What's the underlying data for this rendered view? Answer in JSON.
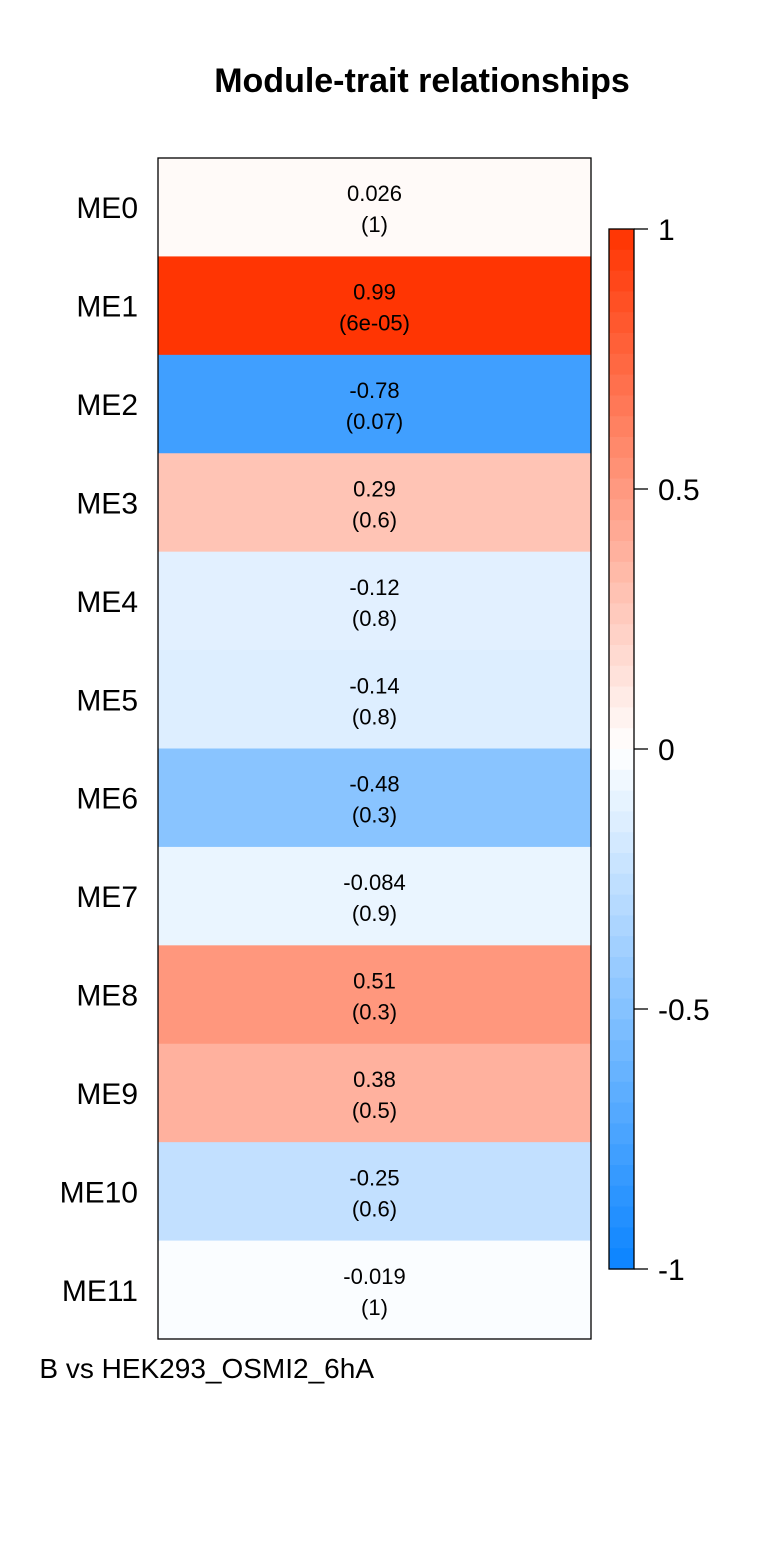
{
  "chart_data": {
    "type": "heatmap",
    "title": "Module-trait relationships",
    "xlabel": "",
    "ylabel": "",
    "x_tick_label": "B vs HEK293_OSMI2_6hA",
    "rows": [
      {
        "label": "ME0",
        "value": 0.026,
        "text": "0.026",
        "pvalue": "(1)"
      },
      {
        "label": "ME1",
        "value": 0.99,
        "text": "0.99",
        "pvalue": "(6e-05)"
      },
      {
        "label": "ME2",
        "value": -0.78,
        "text": "-0.78",
        "pvalue": "(0.07)"
      },
      {
        "label": "ME3",
        "value": 0.29,
        "text": "0.29",
        "pvalue": "(0.6)"
      },
      {
        "label": "ME4",
        "value": -0.12,
        "text": "-0.12",
        "pvalue": "(0.8)"
      },
      {
        "label": "ME5",
        "value": -0.14,
        "text": "-0.14",
        "pvalue": "(0.8)"
      },
      {
        "label": "ME6",
        "value": -0.48,
        "text": "-0.48",
        "pvalue": "(0.3)"
      },
      {
        "label": "ME7",
        "value": -0.084,
        "text": "-0.084",
        "pvalue": "(0.9)"
      },
      {
        "label": "ME8",
        "value": 0.51,
        "text": "0.51",
        "pvalue": "(0.3)"
      },
      {
        "label": "ME9",
        "value": 0.38,
        "text": "0.38",
        "pvalue": "(0.5)"
      },
      {
        "label": "ME10",
        "value": -0.25,
        "text": "-0.25",
        "pvalue": "(0.6)"
      },
      {
        "label": "ME11",
        "value": -0.019,
        "text": "-0.019",
        "pvalue": "(1)"
      }
    ],
    "colorbar": {
      "range": [
        -1,
        1
      ],
      "ticks": [
        {
          "value": 1,
          "label": "1"
        },
        {
          "value": 0.5,
          "label": "0.5"
        },
        {
          "value": 0,
          "label": "0"
        },
        {
          "value": -0.5,
          "label": "-0.5"
        },
        {
          "value": -1,
          "label": "-1"
        }
      ],
      "low_color": "#0a84ff",
      "mid_color": "#ffffff",
      "high_color": "#ff3300"
    }
  }
}
